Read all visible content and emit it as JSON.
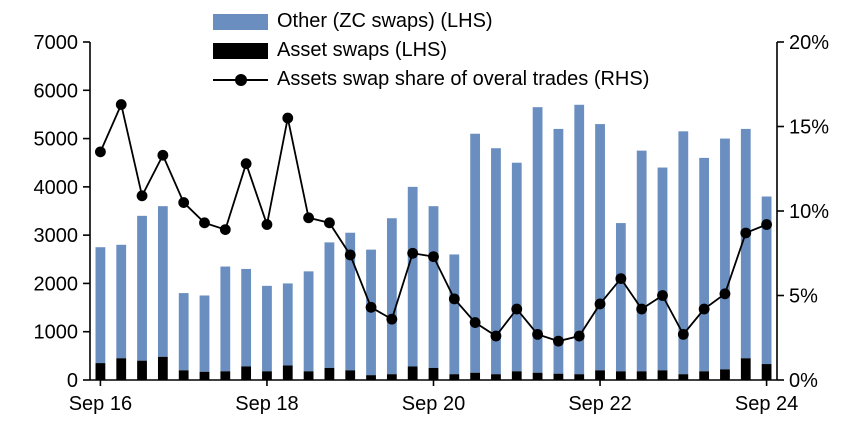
{
  "chart_data": {
    "type": "bar",
    "title": "",
    "x_axis": {
      "tick_labels": [
        "Sep 16",
        "Sep 18",
        "Sep 20",
        "Sep 22",
        "Sep 24"
      ],
      "tick_positions": [
        0,
        8,
        16,
        24,
        32
      ]
    },
    "left_axis": {
      "min": 0,
      "max": 7000,
      "ticks": [
        0,
        1000,
        2000,
        3000,
        4000,
        5000,
        6000,
        7000
      ]
    },
    "right_axis": {
      "min": 0,
      "max": 20,
      "tick_values": [
        0,
        5,
        10,
        15,
        20
      ],
      "tick_labels": [
        "0%",
        "5%",
        "10%",
        "15%",
        "20%"
      ]
    },
    "legend_position": "top",
    "grid": false,
    "series": [
      {
        "name": "Other (ZC swaps) (LHS)",
        "type": "bar",
        "stacked": true,
        "axis": "left",
        "color": "#6a8ebf",
        "values": [
          2400,
          2350,
          3000,
          3120,
          1600,
          1580,
          2170,
          2020,
          1770,
          1700,
          2070,
          2600,
          2850,
          2600,
          3230,
          3720,
          3350,
          2480,
          4950,
          4680,
          4320,
          5500,
          5070,
          5580,
          5100,
          3070,
          4570,
          4200,
          5030,
          4420,
          4780,
          4750,
          3470
        ]
      },
      {
        "name": "Asset swaps (LHS)",
        "type": "bar",
        "stacked": true,
        "axis": "left",
        "color": "#000000",
        "values": [
          350,
          450,
          400,
          480,
          200,
          170,
          180,
          280,
          180,
          300,
          180,
          250,
          200,
          100,
          120,
          280,
          250,
          120,
          150,
          120,
          180,
          150,
          130,
          120,
          200,
          180,
          180,
          200,
          120,
          180,
          220,
          450,
          330
        ]
      },
      {
        "name": "Assets swap share of overal trades (RHS)",
        "type": "line",
        "axis": "right",
        "color": "#000000",
        "marker": "circle",
        "values": [
          13.5,
          16.3,
          10.9,
          13.3,
          10.5,
          9.3,
          8.9,
          12.8,
          9.2,
          15.5,
          9.6,
          9.3,
          7.4,
          4.3,
          3.6,
          7.5,
          7.3,
          4.8,
          3.4,
          2.6,
          4.2,
          2.7,
          2.3,
          2.6,
          4.5,
          6.0,
          4.2,
          5.0,
          2.7,
          4.2,
          5.1,
          8.7,
          9.2
        ]
      }
    ]
  }
}
